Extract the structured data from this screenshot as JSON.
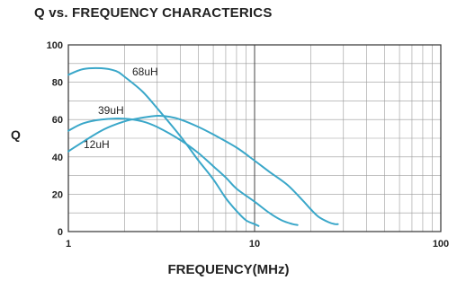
{
  "chart_data": {
    "type": "line",
    "title": "Q vs. FREQUENCY CHARACTERICS",
    "xlabel": "FREQUENCY(MHz)",
    "ylabel": "Q",
    "x_scale": "log",
    "xlim": [
      1,
      100
    ],
    "ylim": [
      0,
      100
    ],
    "x_ticks": [
      {
        "value": 1,
        "label": "1"
      },
      {
        "value": 10,
        "label": "10"
      },
      {
        "value": 100,
        "label": "100"
      }
    ],
    "y_ticks": [
      {
        "value": 0,
        "label": "0"
      },
      {
        "value": 20,
        "label": "20"
      },
      {
        "value": 40,
        "label": "40"
      },
      {
        "value": 60,
        "label": "60"
      },
      {
        "value": 80,
        "label": "80"
      },
      {
        "value": 100,
        "label": "100"
      }
    ],
    "grid": true,
    "line_color": "#3aa7c9",
    "series": [
      {
        "name": "68uH",
        "x": [
          1.0,
          1.2,
          1.5,
          1.8,
          2.0,
          2.5,
          3.0,
          4.0,
          5.0,
          6.0,
          7.0,
          8.0,
          9.0,
          10.0,
          10.5
        ],
        "y": [
          84,
          87,
          87.5,
          86,
          83,
          75,
          66,
          51,
          38,
          28,
          18,
          11,
          6,
          4,
          3
        ]
      },
      {
        "name": "39uH",
        "x": [
          1.0,
          1.2,
          1.5,
          2.0,
          2.5,
          3.0,
          4.0,
          5.0,
          6.0,
          7.0,
          8.0,
          10.0,
          12.0,
          14.0,
          16.0,
          17.0
        ],
        "y": [
          54,
          58,
          60,
          60.5,
          59,
          56,
          49,
          42,
          35,
          29,
          23,
          16,
          10,
          6,
          4,
          3.5
        ]
      },
      {
        "name": "12uH",
        "x": [
          1.0,
          1.5,
          2.0,
          2.5,
          3.0,
          3.5,
          4.0,
          5.0,
          6.0,
          8.0,
          10.0,
          12.0,
          15.0,
          18.0,
          20.0,
          22.0,
          25.0,
          27.0,
          28.0
        ],
        "y": [
          43,
          54,
          59,
          61,
          62,
          61.5,
          60,
          56,
          52,
          45,
          38,
          32,
          25,
          17,
          12,
          8,
          5,
          4,
          4
        ]
      }
    ]
  }
}
